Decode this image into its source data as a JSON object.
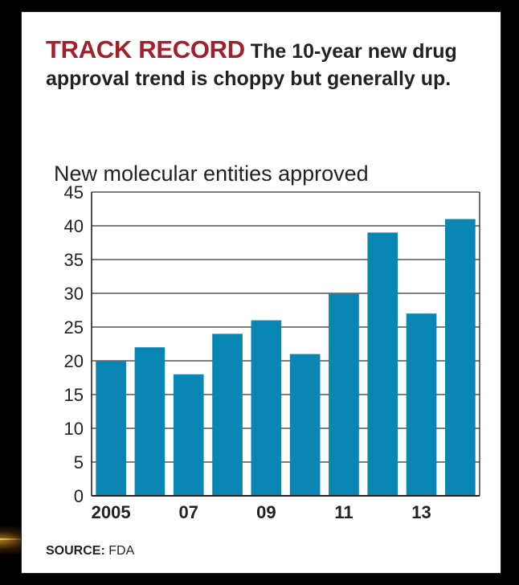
{
  "headline": {
    "kicker": "TRACK RECORD",
    "text": "The 10-year new drug approval trend is choppy but generally up."
  },
  "source": {
    "label": "SOURCE:",
    "value": "FDA"
  },
  "chart_data": {
    "type": "bar",
    "title": "",
    "xlabel": "",
    "ylabel": "New molecular entities approved",
    "categories": [
      "2005",
      "06",
      "07",
      "08",
      "09",
      "10",
      "11",
      "12",
      "13",
      "14"
    ],
    "x_tick_labels": [
      "2005",
      "",
      "07",
      "",
      "09",
      "",
      "11",
      "",
      "13",
      ""
    ],
    "values": [
      20,
      22,
      18,
      24,
      26,
      21,
      30,
      39,
      27,
      41
    ],
    "ylim": [
      0,
      45
    ],
    "yticks": [
      0,
      5,
      10,
      15,
      20,
      25,
      30,
      35,
      40,
      45
    ],
    "grid": true,
    "bar_color": "#0a86b4"
  }
}
